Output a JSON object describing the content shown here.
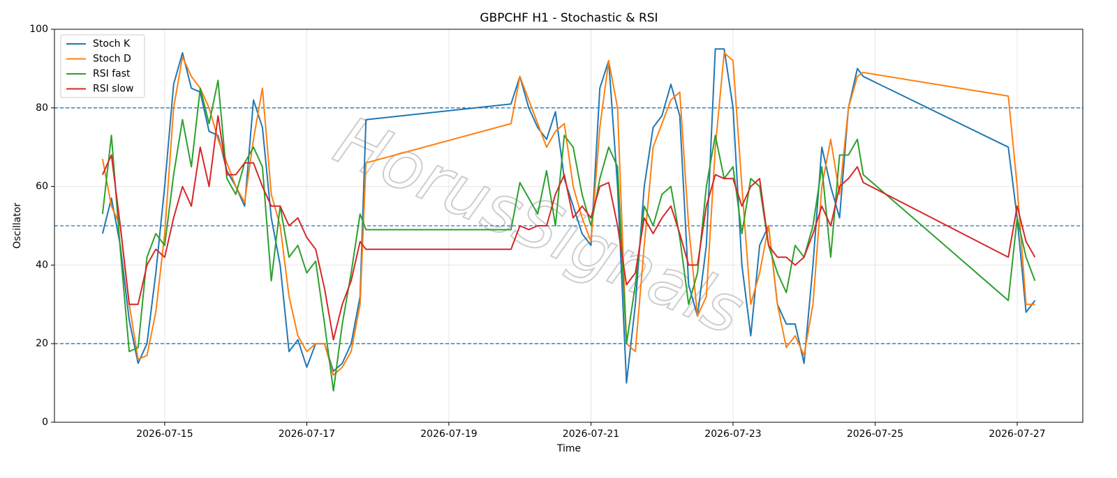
{
  "chart_data": {
    "type": "line",
    "title": "GBPCHF H1 - Stochastic & RSI",
    "xlabel": "Time",
    "ylabel": "Oscillator",
    "watermark": "HorusSignals",
    "x": [
      "2026-07-14 03:00",
      "2026-07-14 06:00",
      "2026-07-14 09:00",
      "2026-07-14 12:00",
      "2026-07-14 15:00",
      "2026-07-14 18:00",
      "2026-07-14 21:00",
      "2026-07-15 00:00",
      "2026-07-15 03:00",
      "2026-07-15 06:00",
      "2026-07-15 09:00",
      "2026-07-15 12:00",
      "2026-07-15 15:00",
      "2026-07-15 18:00",
      "2026-07-15 21:00",
      "2026-07-16 00:00",
      "2026-07-16 03:00",
      "2026-07-16 06:00",
      "2026-07-16 09:00",
      "2026-07-16 12:00",
      "2026-07-16 15:00",
      "2026-07-16 18:00",
      "2026-07-16 21:00",
      "2026-07-17 00:00",
      "2026-07-17 03:00",
      "2026-07-17 06:00",
      "2026-07-17 09:00",
      "2026-07-17 12:00",
      "2026-07-17 15:00",
      "2026-07-17 18:00",
      "2026-07-17 20:00",
      "2026-07-19 21:00",
      "2026-07-20 00:00",
      "2026-07-20 03:00",
      "2026-07-20 06:00",
      "2026-07-20 09:00",
      "2026-07-20 12:00",
      "2026-07-20 15:00",
      "2026-07-20 18:00",
      "2026-07-20 21:00",
      "2026-07-21 00:00",
      "2026-07-21 03:00",
      "2026-07-21 06:00",
      "2026-07-21 09:00",
      "2026-07-21 12:00",
      "2026-07-21 15:00",
      "2026-07-21 18:00",
      "2026-07-21 21:00",
      "2026-07-22 00:00",
      "2026-07-22 03:00",
      "2026-07-22 06:00",
      "2026-07-22 09:00",
      "2026-07-22 12:00",
      "2026-07-22 15:00",
      "2026-07-22 18:00",
      "2026-07-22 21:00",
      "2026-07-23 00:00",
      "2026-07-23 03:00",
      "2026-07-23 06:00",
      "2026-07-23 09:00",
      "2026-07-23 12:00",
      "2026-07-23 15:00",
      "2026-07-23 18:00",
      "2026-07-23 21:00",
      "2026-07-24 00:00",
      "2026-07-24 03:00",
      "2026-07-24 06:00",
      "2026-07-24 09:00",
      "2026-07-24 12:00",
      "2026-07-24 15:00",
      "2026-07-24 18:00",
      "2026-07-24 20:00",
      "2026-07-26 21:00",
      "2026-07-27 00:00",
      "2026-07-27 03:00",
      "2026-07-27 06:00"
    ],
    "series": [
      {
        "name": "Stoch K",
        "color": "#1f77b4",
        "values": [
          48,
          57,
          45,
          26,
          15,
          20,
          38,
          60,
          86,
          94,
          85,
          84,
          74,
          73,
          64,
          60,
          55,
          82,
          75,
          52,
          40,
          18,
          21,
          14,
          20,
          20,
          13,
          15,
          20,
          32,
          77,
          81,
          88,
          80,
          75,
          72,
          79,
          62,
          55,
          48,
          45,
          85,
          92,
          60,
          10,
          30,
          60,
          75,
          78,
          86,
          78,
          35,
          27,
          45,
          95,
          95,
          80,
          40,
          22,
          45,
          50,
          30,
          25,
          25,
          15,
          40,
          70,
          60,
          52,
          80,
          90,
          88,
          70,
          52,
          28,
          31
        ]
      },
      {
        "name": "Stoch D",
        "color": "#ff7f0e",
        "values": [
          67,
          55,
          50,
          30,
          16,
          17,
          28,
          48,
          80,
          93,
          88,
          85,
          80,
          72,
          66,
          60,
          56,
          72,
          85,
          58,
          50,
          32,
          22,
          18,
          20,
          20,
          12,
          14,
          18,
          30,
          66,
          76,
          88,
          82,
          76,
          70,
          74,
          76,
          60,
          52,
          46,
          75,
          92,
          80,
          20,
          18,
          45,
          70,
          76,
          82,
          84,
          50,
          27,
          32,
          70,
          94,
          92,
          60,
          30,
          38,
          50,
          30,
          19,
          22,
          17,
          30,
          60,
          72,
          58,
          80,
          88,
          89,
          83,
          60,
          30,
          30
        ]
      },
      {
        "name": "RSI fast",
        "color": "#2ca02c",
        "values": [
          53,
          73,
          44,
          18,
          19,
          42,
          48,
          45,
          63,
          77,
          65,
          85,
          76,
          87,
          62,
          58,
          66,
          70,
          65,
          36,
          55,
          42,
          45,
          38,
          41,
          25,
          8,
          25,
          38,
          53,
          49,
          49,
          61,
          57,
          53,
          64,
          50,
          73,
          70,
          58,
          50,
          62,
          70,
          65,
          20,
          35,
          55,
          50,
          58,
          60,
          47,
          30,
          38,
          60,
          73,
          62,
          65,
          48,
          62,
          60,
          45,
          38,
          33,
          45,
          42,
          50,
          65,
          42,
          68,
          68,
          72,
          63,
          31,
          52,
          42,
          36
        ]
      },
      {
        "name": "RSI slow",
        "color": "#d62728",
        "values": [
          63,
          68,
          50,
          30,
          30,
          40,
          44,
          42,
          52,
          60,
          55,
          70,
          60,
          78,
          63,
          63,
          66,
          66,
          60,
          55,
          55,
          50,
          52,
          47,
          44,
          34,
          21,
          30,
          36,
          46,
          44,
          44,
          50,
          49,
          50,
          50,
          58,
          63,
          52,
          55,
          52,
          60,
          61,
          50,
          35,
          38,
          52,
          48,
          52,
          55,
          48,
          40,
          40,
          55,
          63,
          62,
          62,
          55,
          60,
          62,
          45,
          42,
          42,
          40,
          42,
          48,
          55,
          50,
          60,
          62,
          65,
          61,
          42,
          55,
          46,
          42
        ]
      }
    ],
    "xlim": [
      "2026-07-13 10:45",
      "2026-07-27 22:10"
    ],
    "xticks": [
      "2026-07-15",
      "2026-07-17",
      "2026-07-19",
      "2026-07-21",
      "2026-07-23",
      "2026-07-25",
      "2026-07-27"
    ],
    "ylim": [
      0,
      100
    ],
    "yticks": [
      0,
      20,
      40,
      60,
      80,
      100
    ],
    "levels": [
      20,
      50,
      80
    ],
    "level_color": "#1f77b4",
    "grid": true,
    "legend": "upper left"
  }
}
